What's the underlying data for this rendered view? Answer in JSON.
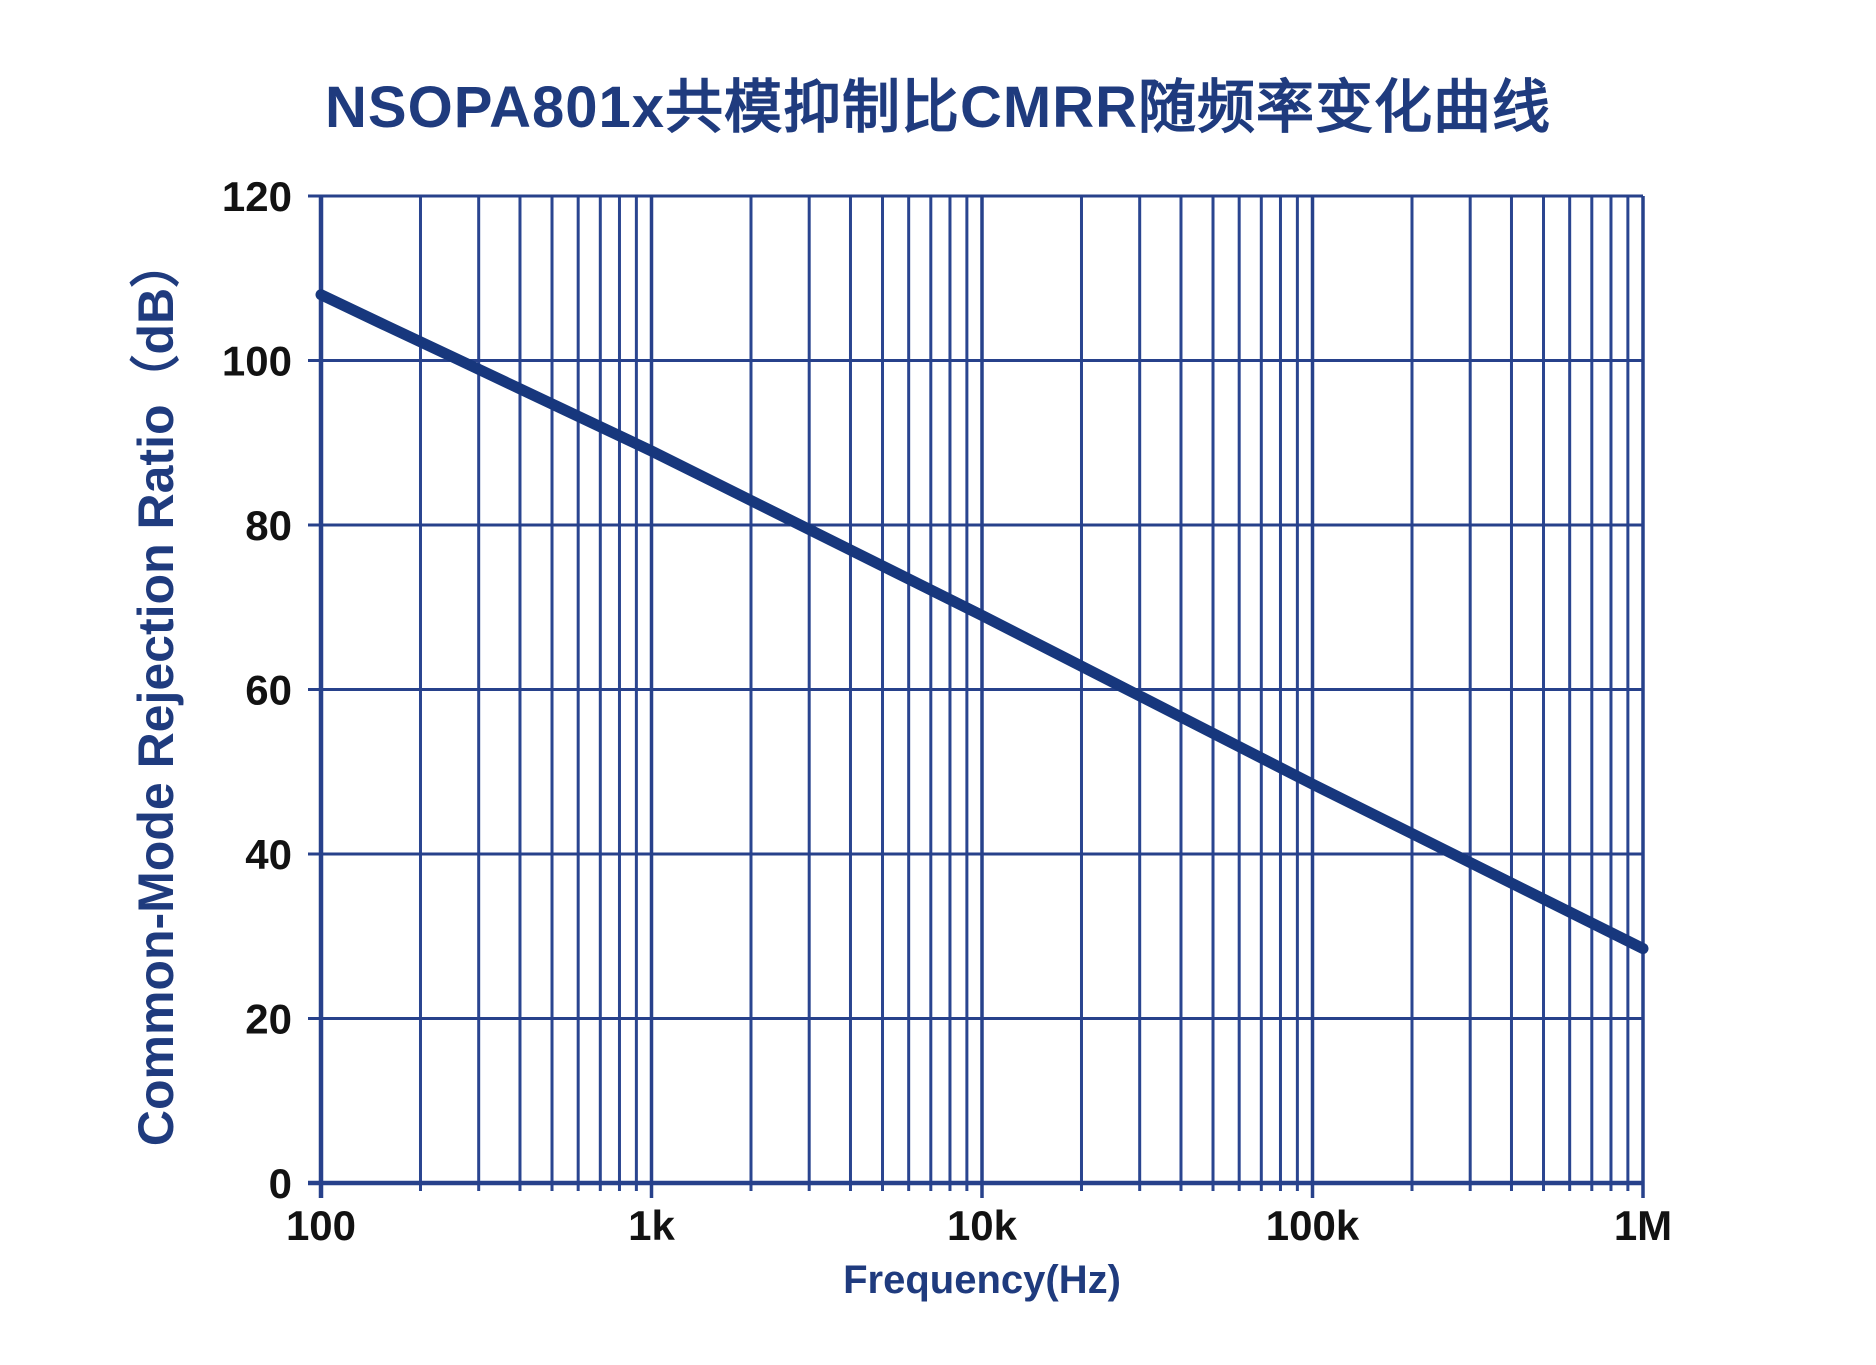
{
  "page": {
    "background": "#ffffff"
  },
  "chart_data": {
    "type": "line",
    "title": "NSOPA801x共模抑制比CMRR随频率变化曲线",
    "xlabel": "Frequency(Hz)",
    "ylabel": "Common-Mode Rejection Ratio（dB）",
    "x_scale": "log",
    "x_range": [
      100,
      1000000
    ],
    "y_range": [
      0,
      120
    ],
    "y_ticks": [
      0,
      20,
      40,
      60,
      80,
      100,
      120
    ],
    "x_ticks": [
      {
        "value": 100,
        "label": "100"
      },
      {
        "value": 1000,
        "label": "1k"
      },
      {
        "value": 10000,
        "label": "10k"
      },
      {
        "value": 100000,
        "label": "100k"
      },
      {
        "value": 1000000,
        "label": "1M"
      }
    ],
    "minor_grid": true,
    "legend_position": "none",
    "series": [
      {
        "name": "CMRR",
        "points": [
          [
            100,
            108
          ],
          [
            158,
            104.2
          ],
          [
            251,
            100.4
          ],
          [
            398,
            96.6
          ],
          [
            631,
            92.8
          ],
          [
            1000,
            89
          ],
          [
            1585,
            85
          ],
          [
            2512,
            81
          ],
          [
            3981,
            77
          ],
          [
            6310,
            73
          ],
          [
            10000,
            69
          ],
          [
            15850,
            64.9
          ],
          [
            25120,
            60.8
          ],
          [
            39810,
            56.7
          ],
          [
            63100,
            52.6
          ],
          [
            100000,
            48.5
          ],
          [
            158500,
            44.5
          ],
          [
            251200,
            40.5
          ],
          [
            398100,
            36.5
          ],
          [
            631000,
            32.5
          ],
          [
            1000000,
            28.5
          ]
        ]
      }
    ]
  },
  "colors": {
    "title_text": "#1f3b7e",
    "axis_label_text": "#1f3b7e",
    "tick_text": "#121212",
    "grid": "#2a4590",
    "axis": "#27418b",
    "curve": "#17377d"
  }
}
